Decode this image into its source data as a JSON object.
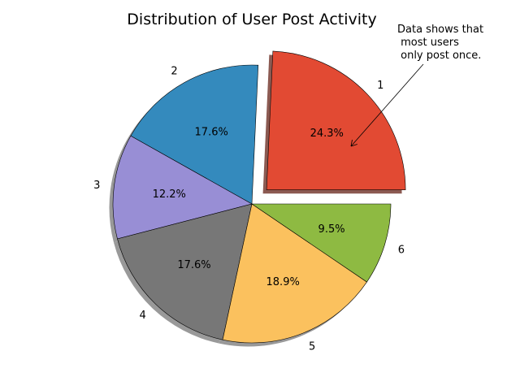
{
  "chart_data": {
    "type": "pie",
    "title": "Distribution of User Post Activity",
    "categories": [
      "1",
      "2",
      "3",
      "4",
      "5",
      "6"
    ],
    "percent_labels": [
      "24.3%",
      "17.6%",
      "12.2%",
      "17.6%",
      "18.9%",
      "9.5%"
    ],
    "values": [
      24.3,
      17.6,
      12.2,
      17.6,
      18.9,
      9.5
    ],
    "colors": [
      "#E24A33",
      "#348ABD",
      "#988ED5",
      "#777777",
      "#FBC15E",
      "#8EBA42"
    ],
    "exploded_slice": "1",
    "shadow": true,
    "start_angle": 0,
    "annotation": {
      "lines": [
        "Data shows that",
        " most users",
        " only post once."
      ],
      "points_to": "1"
    }
  }
}
